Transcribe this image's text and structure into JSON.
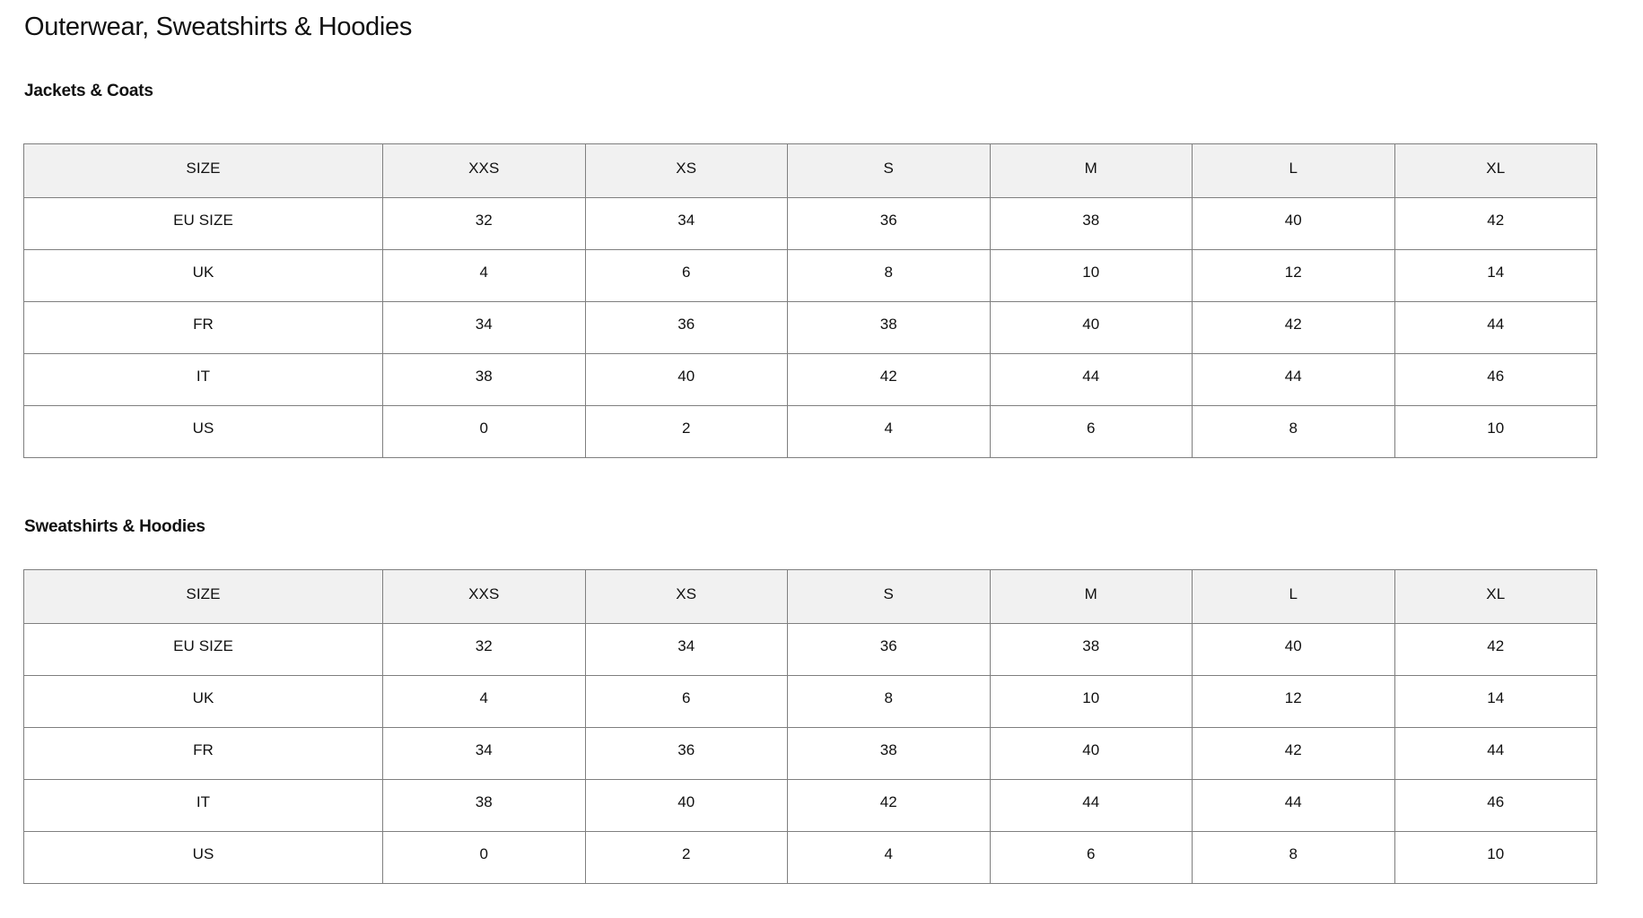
{
  "page": {
    "title": "Outerwear, Sweatshirts & Hoodies"
  },
  "colors": {
    "header_row_bg": "#f1f1f1",
    "table_border": "#7f7f7f",
    "text": "#111111",
    "page_bg": "#ffffff"
  },
  "sections": [
    {
      "heading": "Jackets & Coats",
      "table": {
        "columns": [
          "SIZE",
          "XXS",
          "XS",
          "S",
          "M",
          "L",
          "XL"
        ],
        "rows": [
          {
            "label": "EU SIZE",
            "values": [
              "32",
              "34",
              "36",
              "38",
              "40",
              "42"
            ]
          },
          {
            "label": "UK",
            "values": [
              "4",
              "6",
              "8",
              "10",
              "12",
              "14"
            ]
          },
          {
            "label": "FR",
            "values": [
              "34",
              "36",
              "38",
              "40",
              "42",
              "44"
            ]
          },
          {
            "label": "IT",
            "values": [
              "38",
              "40",
              "42",
              "44",
              "44",
              "46"
            ]
          },
          {
            "label": "US",
            "values": [
              "0",
              "2",
              "4",
              "6",
              "8",
              "10"
            ]
          }
        ]
      }
    },
    {
      "heading": "Sweatshirts & Hoodies",
      "table": {
        "columns": [
          "SIZE",
          "XXS",
          "XS",
          "S",
          "M",
          "L",
          "XL"
        ],
        "rows": [
          {
            "label": "EU SIZE",
            "values": [
              "32",
              "34",
              "36",
              "38",
              "40",
              "42"
            ]
          },
          {
            "label": "UK",
            "values": [
              "4",
              "6",
              "8",
              "10",
              "12",
              "14"
            ]
          },
          {
            "label": "FR",
            "values": [
              "34",
              "36",
              "38",
              "40",
              "42",
              "44"
            ]
          },
          {
            "label": "IT",
            "values": [
              "38",
              "40",
              "42",
              "44",
              "44",
              "46"
            ]
          },
          {
            "label": "US",
            "values": [
              "0",
              "2",
              "4",
              "6",
              "8",
              "10"
            ]
          }
        ]
      }
    }
  ]
}
